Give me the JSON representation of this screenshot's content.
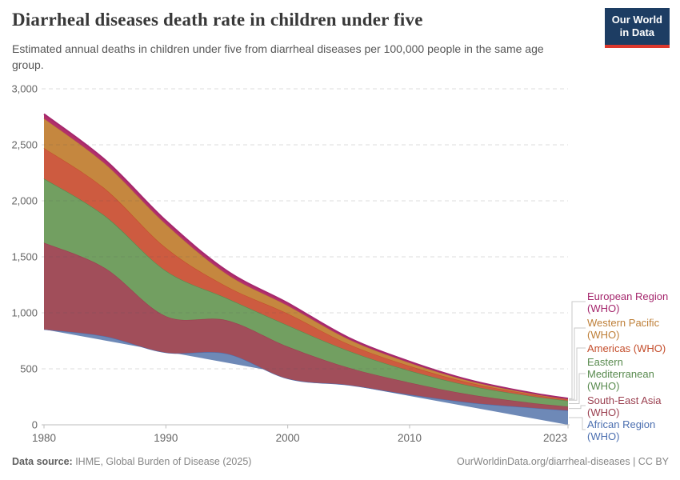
{
  "header": {
    "title": "Diarrheal diseases death rate in children under five",
    "subtitle": "Estimated annual deaths in children under five from diarrheal diseases per 100,000 people in the same age group.",
    "logo": {
      "line1": "Our World",
      "line2": "in Data"
    }
  },
  "chart_data": {
    "type": "area",
    "stacked": true,
    "title": "Diarrheal diseases death rate in children under five",
    "unit": "deaths per 100,000 children under five",
    "x": [
      1980,
      1985,
      1990,
      1995,
      2000,
      2005,
      2010,
      2015,
      2020,
      2023
    ],
    "series": [
      {
        "name": "African Region (WHO)",
        "fill": "#6e89b7",
        "line": "#4c6fb0",
        "values": [
          852,
          790,
          645,
          635,
          412,
          355,
          269,
          197,
          152,
          128
        ]
      },
      {
        "name": "South-East Asia (WHO)",
        "fill": "#a14e5a",
        "line": "#9b4050",
        "values": [
          774,
          610,
          325,
          298,
          286,
          155,
          108,
          72,
          44,
          35
        ]
      },
      {
        "name": "Eastern Mediterranean (WHO)",
        "fill": "#729f61",
        "line": "#588a4e",
        "values": [
          572,
          465,
          405,
          197,
          190,
          150,
          106,
          78,
          60,
          52
        ]
      },
      {
        "name": "Americas (WHO)",
        "fill": "#cd5b40",
        "line": "#c44e2c",
        "values": [
          273,
          243,
          205,
          105,
          105,
          60,
          42,
          26,
          15,
          10
        ]
      },
      {
        "name": "Western Pacific (WHO)",
        "fill": "#c5873f",
        "line": "#be7f38",
        "values": [
          263,
          222,
          210,
          110,
          70,
          42,
          28,
          16,
          9,
          6
        ]
      },
      {
        "name": "European Region (WHO)",
        "fill": "#b23069",
        "line": "#a5276d",
        "values": [
          40,
          36,
          33,
          30,
          24,
          16,
          12,
          8,
          5,
          4
        ]
      }
    ],
    "yticks": [
      0,
      500,
      1000,
      1500,
      2000,
      2500,
      3000
    ],
    "ytick_labels": [
      "0",
      "500",
      "1,000",
      "1,500",
      "2,000",
      "2,500",
      "3,000"
    ],
    "xticks": [
      1980,
      1990,
      2000,
      2010,
      2023
    ],
    "ylim": [
      0,
      3000
    ],
    "xlim": [
      1980,
      2023
    ],
    "grid": "dashed-horizontal",
    "legend_position": "right"
  },
  "legend": {
    "entries": [
      {
        "label": "European Region (WHO)",
        "color": "#a5276d"
      },
      {
        "label": "Western Pacific (WHO)",
        "color": "#be7f38"
      },
      {
        "label": "Americas (WHO)",
        "color": "#c44e2c"
      },
      {
        "label": "Eastern Mediterranean (WHO)",
        "color": "#588a4e"
      },
      {
        "label": "South-East Asia (WHO)",
        "color": "#9b4050"
      },
      {
        "label": "African Region (WHO)",
        "color": "#4c6fb0"
      }
    ]
  },
  "footer": {
    "source_label": "Data source:",
    "source_text": " IHME, Global Burden of Disease (2025)",
    "link_text": "OurWorldinData.org/diarrheal-diseases",
    "license_text": " | CC BY"
  }
}
